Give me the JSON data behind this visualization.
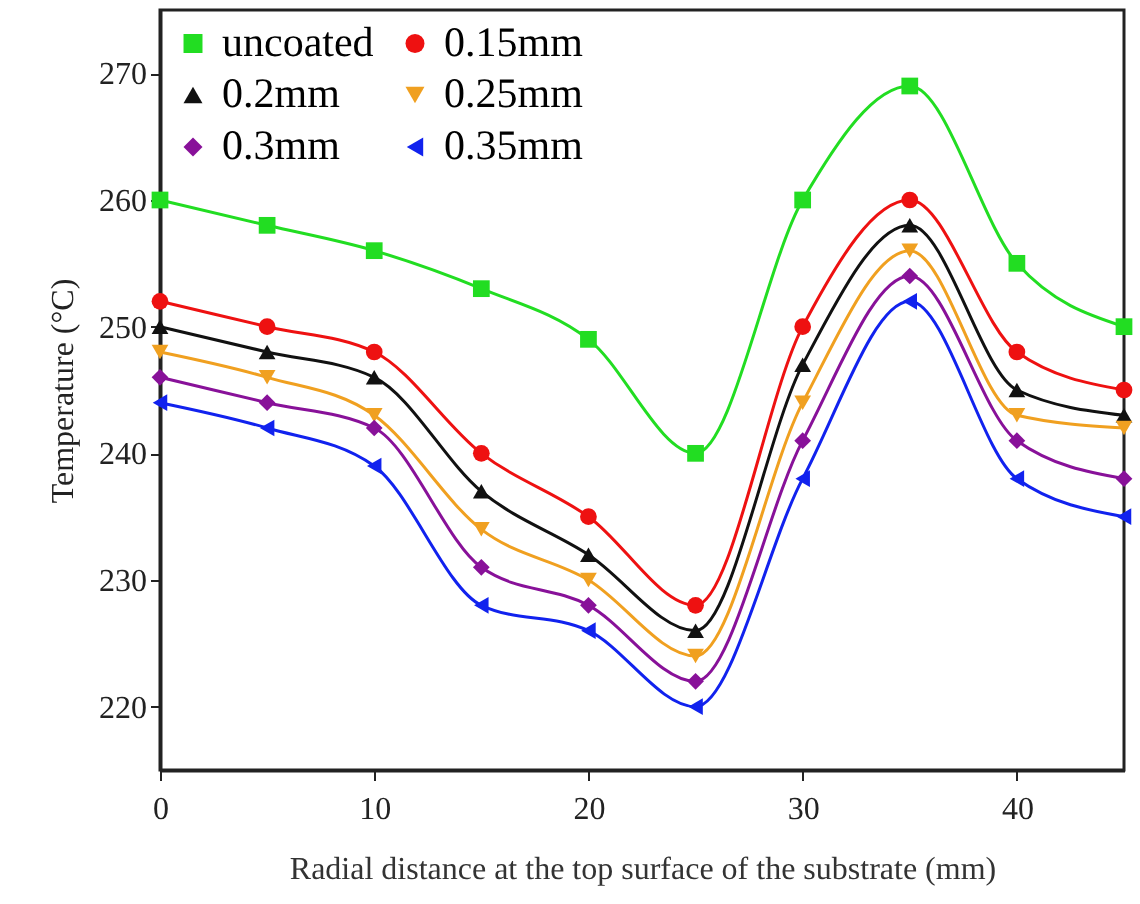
{
  "chart_data": {
    "type": "line",
    "xlabel": "Radial distance at the top surface of the substrate (mm)",
    "ylabel": "Temperature (°C)",
    "x": [
      0,
      5,
      10,
      15,
      20,
      25,
      30,
      35,
      40,
      45
    ],
    "xlim": [
      0,
      45
    ],
    "xticks": [
      0,
      10,
      20,
      30,
      40
    ],
    "ylim": [
      215,
      275
    ],
    "yticks": [
      220,
      230,
      240,
      250,
      260,
      270
    ],
    "grid": false,
    "legend": "top left",
    "line_style": "solid",
    "series": [
      {
        "name": "uncoated",
        "color": "#22dd22",
        "marker": "square",
        "values": [
          260,
          258,
          256,
          253,
          249,
          240,
          260,
          269,
          255,
          250
        ]
      },
      {
        "name": "0.15mm",
        "color": "#ee1111",
        "marker": "circle",
        "values": [
          252,
          250,
          248,
          240,
          235,
          228,
          250,
          260,
          248,
          245
        ]
      },
      {
        "name": "0.2mm",
        "color": "#111111",
        "marker": "triangle",
        "values": [
          250,
          248,
          246,
          237,
          232,
          226,
          247,
          258,
          245,
          243
        ]
      },
      {
        "name": "0.25mm",
        "color": "#f0a020",
        "marker": "triangle-down",
        "values": [
          248,
          246,
          243,
          234,
          230,
          224,
          244,
          256,
          243,
          242
        ]
      },
      {
        "name": "0.3mm",
        "color": "#881199",
        "marker": "diamond",
        "values": [
          246,
          244,
          242,
          231,
          228,
          222,
          241,
          254,
          241,
          238
        ]
      },
      {
        "name": "0.35mm",
        "color": "#1122ee",
        "marker": "triangle-left",
        "values": [
          244,
          242,
          239,
          228,
          226,
          220,
          238,
          252,
          238,
          235
        ]
      }
    ]
  }
}
